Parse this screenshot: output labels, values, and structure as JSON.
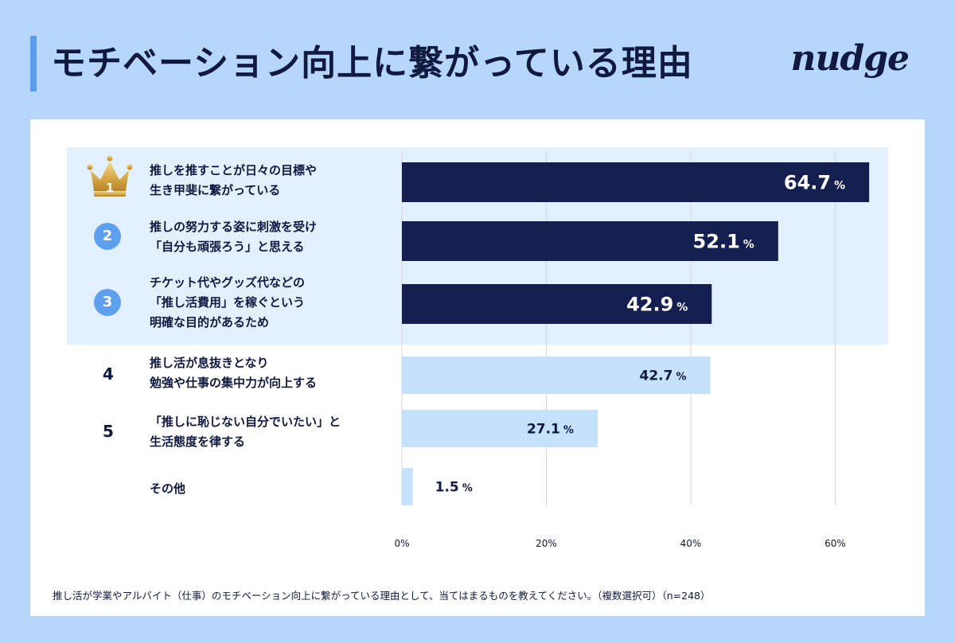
{
  "header": {
    "title": "モチベーション向上に繋がっている理由",
    "logo_text": "nudge"
  },
  "chart_data": {
    "type": "bar",
    "orientation": "horizontal",
    "categories": [
      "推しを推すことが日々の目標や生き甲斐に繋がっている",
      "推しの努力する姿に刺激を受け「自分も頑張ろう」と思える",
      "チケット代やグッズ代などの「推し活費用」を稼ぐという明確な目的があるため",
      "推し活が息抜きとなり勉強や仕事の集中力が向上する",
      "「推しに恥じない自分でいたい」と生活態度を律する",
      "その他"
    ],
    "values": [
      64.7,
      52.1,
      42.9,
      42.7,
      27.1,
      1.5
    ],
    "value_unit": "%",
    "xlim": [
      0,
      65
    ],
    "xticks": [
      0,
      20,
      40,
      60
    ],
    "xtick_labels": [
      "0%",
      "20%",
      "40%",
      "60%"
    ],
    "grid": true,
    "highlight_top_n": 3,
    "colors": {
      "top": "#151f4f",
      "other": "#c5e1fc",
      "top_label": "#ffffff",
      "other_label": "#10193f",
      "band": "#e3f0ff",
      "grid": "#d0d4dc"
    }
  },
  "rows": [
    {
      "rank": "1",
      "lines": [
        "推しを推すことが日々の目標や",
        "生き甲斐に繋がっている"
      ]
    },
    {
      "rank": "2",
      "lines": [
        "推しの努力する姿に刺激を受け",
        "「自分も頑張ろう」と思える"
      ]
    },
    {
      "rank": "3",
      "lines": [
        "チケット代やグッズ代などの",
        "「推し活費用」を稼ぐという",
        "明確な目的があるため"
      ]
    },
    {
      "rank": "4",
      "lines": [
        "推し活が息抜きとなり",
        "勉強や仕事の集中力が向上する"
      ]
    },
    {
      "rank": "5",
      "lines": [
        "「推しに恥じない自分でいたい」と",
        "生活態度を律する"
      ]
    },
    {
      "rank": "",
      "lines": [
        "その他"
      ]
    }
  ],
  "footnote": "推し活が学業やアルバイト（仕事）のモチベーション向上に繋がっている理由として、当てはまるものを教えてください。（複数選択可）（n=248）"
}
